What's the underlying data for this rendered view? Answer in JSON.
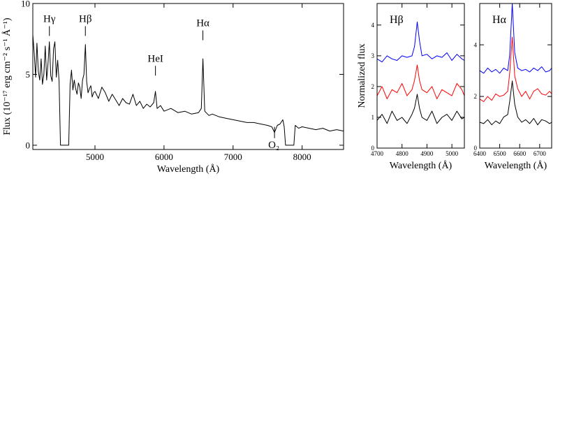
{
  "chart_data": [
    {
      "panel": "main",
      "type": "line",
      "xlabel": "Wavelength (Å)",
      "ylabel": "Flux (10⁻¹⁷ erg cm⁻² s⁻¹ Å⁻¹)",
      "xlim": [
        4100,
        8600
      ],
      "ylim": [
        -0.3,
        10
      ],
      "xticks": [
        5000,
        6000,
        7000,
        8000
      ],
      "yticks": [
        0,
        5,
        10
      ],
      "annotations": [
        {
          "label": "Hγ",
          "x": 4340
        },
        {
          "label": "Hβ",
          "x": 4861
        },
        {
          "label": "HeI",
          "x": 5876
        },
        {
          "label": "Hα",
          "x": 6563
        },
        {
          "label": "O₂",
          "x": 7600
        }
      ],
      "series": [
        {
          "color": "#000000",
          "x": [
            4100,
            4120,
            4140,
            4160,
            4180,
            4200,
            4220,
            4240,
            4260,
            4280,
            4300,
            4320,
            4340,
            4360,
            4380,
            4400,
            4420,
            4440,
            4460,
            4480,
            4500,
            4520,
            4540,
            4560,
            4580,
            4600,
            4620,
            4640,
            4660,
            4680,
            4700,
            4720,
            4740,
            4760,
            4780,
            4800,
            4820,
            4840,
            4861,
            4880,
            4900,
            4920,
            4940,
            4960,
            4980,
            5000,
            5050,
            5100,
            5150,
            5200,
            5250,
            5300,
            5350,
            5400,
            5450,
            5500,
            5550,
            5600,
            5650,
            5700,
            5750,
            5800,
            5850,
            5876,
            5900,
            5950,
            6000,
            6100,
            6200,
            6300,
            6400,
            6500,
            6540,
            6563,
            6590,
            6650,
            6700,
            6800,
            6900,
            7000,
            7100,
            7200,
            7300,
            7400,
            7500,
            7560,
            7600,
            7640,
            7680,
            7720,
            7740,
            7760,
            7780,
            7800,
            7850,
            7880,
            7900,
            7950,
            8000,
            8100,
            8200,
            8300,
            8400,
            8500,
            8600
          ],
          "y": [
            7.8,
            6.5,
            4.8,
            7.2,
            5.2,
            4.6,
            6.1,
            4.3,
            5.0,
            7.0,
            4.6,
            5.8,
            7.3,
            4.9,
            4.5,
            6.8,
            7.3,
            4.8,
            6.0,
            4.5,
            0.0,
            0.0,
            0.0,
            0.0,
            0.0,
            0.0,
            0.0,
            4.3,
            5.3,
            3.9,
            4.6,
            4.0,
            3.6,
            4.4,
            4.1,
            3.3,
            4.6,
            5.0,
            7.1,
            4.5,
            3.7,
            4.0,
            4.2,
            3.4,
            3.7,
            3.8,
            3.3,
            4.1,
            3.7,
            3.1,
            3.6,
            3.2,
            2.8,
            3.3,
            3.0,
            2.9,
            3.6,
            2.8,
            3.1,
            2.6,
            2.9,
            2.7,
            3.0,
            3.8,
            2.6,
            2.8,
            2.4,
            2.6,
            2.3,
            2.4,
            2.2,
            2.3,
            2.6,
            6.1,
            2.4,
            2.1,
            2.2,
            2.0,
            1.9,
            1.8,
            1.7,
            1.6,
            1.6,
            1.5,
            1.4,
            1.3,
            0.9,
            1.4,
            1.5,
            1.8,
            1.3,
            0.0,
            0.0,
            0.0,
            0.0,
            0.0,
            1.4,
            1.2,
            1.3,
            1.2,
            1.1,
            1.2,
            1.0,
            1.1,
            1.0
          ]
        }
      ]
    },
    {
      "panel": "hbeta",
      "type": "line",
      "title": "Hβ",
      "xlabel": "Wavelength (Å)",
      "ylabel": "Normalized flux",
      "xlim": [
        4700,
        5050
      ],
      "ylim": [
        0,
        4.7
      ],
      "xticks": [
        4700,
        4800,
        4900,
        5000
      ],
      "yticks": [
        0,
        1,
        2,
        3,
        4
      ],
      "series": [
        {
          "color": "#0000ff",
          "x": [
            4700,
            4720,
            4740,
            4760,
            4780,
            4800,
            4820,
            4840,
            4850,
            4861,
            4870,
            4880,
            4900,
            4920,
            4940,
            4960,
            4980,
            5000,
            5020,
            5040,
            5050
          ],
          "y": [
            2.9,
            2.8,
            3.0,
            2.9,
            2.85,
            3.0,
            2.95,
            3.0,
            3.3,
            4.1,
            3.5,
            3.0,
            3.05,
            2.9,
            3.0,
            2.95,
            3.1,
            2.85,
            3.05,
            2.9,
            2.85
          ]
        },
        {
          "color": "#ff0000",
          "x": [
            4700,
            4720,
            4740,
            4760,
            4780,
            4800,
            4820,
            4840,
            4850,
            4861,
            4870,
            4880,
            4900,
            4920,
            4940,
            4960,
            4980,
            5000,
            5020,
            5040,
            5050
          ],
          "y": [
            1.7,
            2.0,
            1.6,
            1.9,
            1.8,
            2.1,
            1.7,
            1.9,
            2.2,
            2.7,
            2.2,
            1.9,
            1.8,
            2.0,
            1.6,
            1.9,
            1.8,
            1.7,
            2.1,
            1.9,
            1.7
          ]
        },
        {
          "color": "#000000",
          "x": [
            4700,
            4720,
            4740,
            4760,
            4780,
            4800,
            4820,
            4840,
            4850,
            4861,
            4870,
            4880,
            4900,
            4920,
            4940,
            4960,
            4980,
            5000,
            5020,
            5040,
            5050
          ],
          "y": [
            0.9,
            1.1,
            0.8,
            1.2,
            0.9,
            1.0,
            0.8,
            1.1,
            1.3,
            1.75,
            1.3,
            1.0,
            0.9,
            1.2,
            0.8,
            1.0,
            1.1,
            0.9,
            1.2,
            0.95,
            1.0
          ]
        }
      ]
    },
    {
      "panel": "halpha",
      "type": "line",
      "title": "Hα",
      "xlabel": "Wavelength (Å)",
      "ylabel": "",
      "xlim": [
        6400,
        6760
      ],
      "ylim": [
        0,
        5.6
      ],
      "xticks": [
        6400,
        6500,
        6600,
        6700
      ],
      "yticks": [
        0,
        2,
        4
      ],
      "series": [
        {
          "color": "#0000ff",
          "x": [
            6400,
            6420,
            6440,
            6460,
            6480,
            6500,
            6520,
            6540,
            6550,
            6563,
            6575,
            6590,
            6610,
            6630,
            6650,
            6670,
            6690,
            6710,
            6730,
            6750,
            6760
          ],
          "y": [
            3.0,
            2.9,
            3.1,
            2.95,
            3.05,
            2.9,
            3.1,
            3.0,
            3.6,
            5.6,
            3.7,
            3.1,
            3.0,
            3.05,
            2.95,
            3.1,
            3.0,
            3.15,
            2.95,
            3.0,
            3.1
          ]
        },
        {
          "color": "#ff0000",
          "x": [
            6400,
            6420,
            6440,
            6460,
            6480,
            6500,
            6520,
            6540,
            6550,
            6563,
            6575,
            6590,
            6610,
            6630,
            6650,
            6670,
            6690,
            6710,
            6730,
            6750,
            6760
          ],
          "y": [
            1.9,
            1.8,
            2.0,
            1.85,
            2.1,
            2.0,
            2.05,
            2.2,
            2.9,
            4.3,
            2.8,
            2.3,
            2.0,
            2.2,
            1.9,
            2.2,
            2.3,
            2.1,
            2.05,
            2.2,
            2.1
          ]
        },
        {
          "color": "#000000",
          "x": [
            6400,
            6420,
            6440,
            6460,
            6480,
            6500,
            6520,
            6540,
            6550,
            6563,
            6575,
            6590,
            6610,
            6630,
            6650,
            6670,
            6690,
            6710,
            6730,
            6750,
            6760
          ],
          "y": [
            1.0,
            0.95,
            1.1,
            0.9,
            1.05,
            0.95,
            1.2,
            1.3,
            1.8,
            2.6,
            1.7,
            1.2,
            1.0,
            1.1,
            0.95,
            1.15,
            0.9,
            1.1,
            1.05,
            0.95,
            1.0
          ]
        }
      ]
    }
  ]
}
